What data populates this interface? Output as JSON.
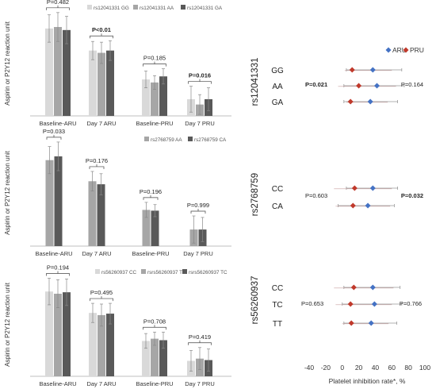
{
  "chart_data": [
    {
      "type": "bar",
      "panel": "rs12041331",
      "ylabel": "Aspirin or P2Y12 reaction unit",
      "categories": [
        "Baseline-ARU",
        "Day 7 ARU",
        "Baseline-PRU",
        "Day 7 PRU"
      ],
      "ylim": [
        0,
        700
      ],
      "series": [
        {
          "name": "rs12041331 GG",
          "color": "#d9d9d9",
          "values": [
            575,
            430,
            240,
            110
          ],
          "errors": [
            90,
            60,
            55,
            85
          ]
        },
        {
          "name": "rs12041331 AA",
          "color": "#a6a6a6",
          "values": [
            585,
            415,
            220,
            75
          ],
          "errors": [
            95,
            70,
            45,
            65
          ]
        },
        {
          "name": "rs12041331 GA",
          "color": "#595959",
          "values": [
            565,
            430,
            260,
            110
          ],
          "errors": [
            90,
            65,
            50,
            75
          ]
        }
      ],
      "pvalues": [
        {
          "text": "P=0.482",
          "bold": false
        },
        {
          "text": "P<0.01",
          "bold": true
        },
        {
          "text": "P=0.185",
          "bold": false
        },
        {
          "text": "P=0.016",
          "bold": true
        }
      ]
    },
    {
      "type": "bar",
      "panel": "rs2768759",
      "ylabel": "Aspirin or P2Y12 reaction unit",
      "categories": [
        "Baseline-ARU",
        "Day 7 ARU",
        "Baseline-PRU",
        "Day 7 PRU"
      ],
      "ylim": [
        0,
        700
      ],
      "series": [
        {
          "name": "rs2768759 AA",
          "color": "#a6a6a6",
          "values": [
            570,
            430,
            240,
            110
          ],
          "errors": [
            90,
            65,
            50,
            90
          ]
        },
        {
          "name": "rs2768759 CA",
          "color": "#595959",
          "values": [
            595,
            410,
            235,
            110
          ],
          "errors": [
            95,
            70,
            40,
            80
          ]
        }
      ],
      "pvalues": [
        {
          "text": "P=0.033",
          "bold": false
        },
        {
          "text": "P=0.176",
          "bold": false
        },
        {
          "text": "P=0.196",
          "bold": false
        },
        {
          "text": "P=0.999",
          "bold": false
        }
      ]
    },
    {
      "type": "bar",
      "panel": "rs56260937",
      "ylabel": "Aspirin or P2Y12 reaction unit",
      "categories": [
        "Baseline-ARU",
        "Day 7 ARU",
        "Baseline-PRU",
        "Day 7 PRU"
      ],
      "ylim": [
        0,
        700
      ],
      "series": [
        {
          "name": "rs56260937 CC",
          "color": "#d9d9d9",
          "values": [
            575,
            430,
            240,
            105
          ],
          "errors": [
            90,
            65,
            50,
            70
          ]
        },
        {
          "name": "rsrs56260937 TT",
          "color": "#a6a6a6",
          "values": [
            560,
            415,
            255,
            120
          ],
          "errors": [
            95,
            75,
            45,
            75
          ]
        },
        {
          "name": "rsrs56260937 TC",
          "color": "#595959",
          "values": [
            570,
            425,
            245,
            110
          ],
          "errors": [
            90,
            70,
            55,
            75
          ]
        }
      ],
      "pvalues": [
        {
          "text": "P=0.194",
          "bold": false
        },
        {
          "text": "P=0.495",
          "bold": false
        },
        {
          "text": "P=0.708",
          "bold": false
        },
        {
          "text": "P=0.419",
          "bold": false
        }
      ]
    },
    {
      "type": "scatter",
      "subtype": "forest",
      "xlabel": "Platelet inhibition rate*, %",
      "xlim": [
        -40,
        100
      ],
      "xticks": [
        -40,
        -20,
        0,
        20,
        40,
        60,
        80,
        100
      ],
      "legend": [
        {
          "name": "ARU",
          "color": "#4472c4"
        },
        {
          "name": "PRU",
          "color": "#c0392b"
        }
      ],
      "legend_placement": "top-right",
      "groups": [
        {
          "snp": "rs12041331",
          "rows": [
            {
              "label": "GG",
              "aru": {
                "mean": 37,
                "lo": 5,
                "hi": 72
              },
              "pru": {
                "mean": 12,
                "lo": 3,
                "hi": 60
              }
            },
            {
              "label": "AA",
              "aru": {
                "mean": 42,
                "lo": 2,
                "hi": 75
              },
              "pru": {
                "mean": 20,
                "lo": -5,
                "hi": 65
              }
            },
            {
              "label": "GA",
              "aru": {
                "mean": 34,
                "lo": 2,
                "hi": 67
              },
              "pru": {
                "mean": 10,
                "lo": 5,
                "hi": 55
              }
            }
          ],
          "p_left": {
            "text": "P=0.021",
            "bold": true
          },
          "p_right": {
            "text": "P=0.164",
            "bold": false
          }
        },
        {
          "snp": "rs2768759",
          "rows": [
            {
              "label": "CC",
              "aru": {
                "mean": 37,
                "lo": 5,
                "hi": 67
              },
              "pru": {
                "mean": 15,
                "lo": -10,
                "hi": 60
              }
            },
            {
              "label": "CA",
              "aru": {
                "mean": 31,
                "lo": -5,
                "hi": 63
              },
              "pru": {
                "mean": 13,
                "lo": -8,
                "hi": 58
              }
            }
          ],
          "p_left": {
            "text": "P=0.603",
            "bold": false
          },
          "p_right": {
            "text": "P=0.032",
            "bold": true
          }
        },
        {
          "snp": "rs56260937",
          "rows": [
            {
              "label": "CC",
              "aru": {
                "mean": 37,
                "lo": 2,
                "hi": 70
              },
              "pru": {
                "mean": 14,
                "lo": -10,
                "hi": 62
              }
            },
            {
              "label": "TC",
              "aru": {
                "mean": 39,
                "lo": 0,
                "hi": 72
              },
              "pru": {
                "mean": 10,
                "lo": -8,
                "hi": 60
              }
            },
            {
              "label": "TT",
              "aru": {
                "mean": 35,
                "lo": 2,
                "hi": 66
              },
              "pru": {
                "mean": 11,
                "lo": 0,
                "hi": 56
              }
            }
          ],
          "p_left": {
            "text": "P=0.653",
            "bold": false
          },
          "p_right": {
            "text": "P=0.766",
            "bold": false
          }
        }
      ]
    }
  ]
}
